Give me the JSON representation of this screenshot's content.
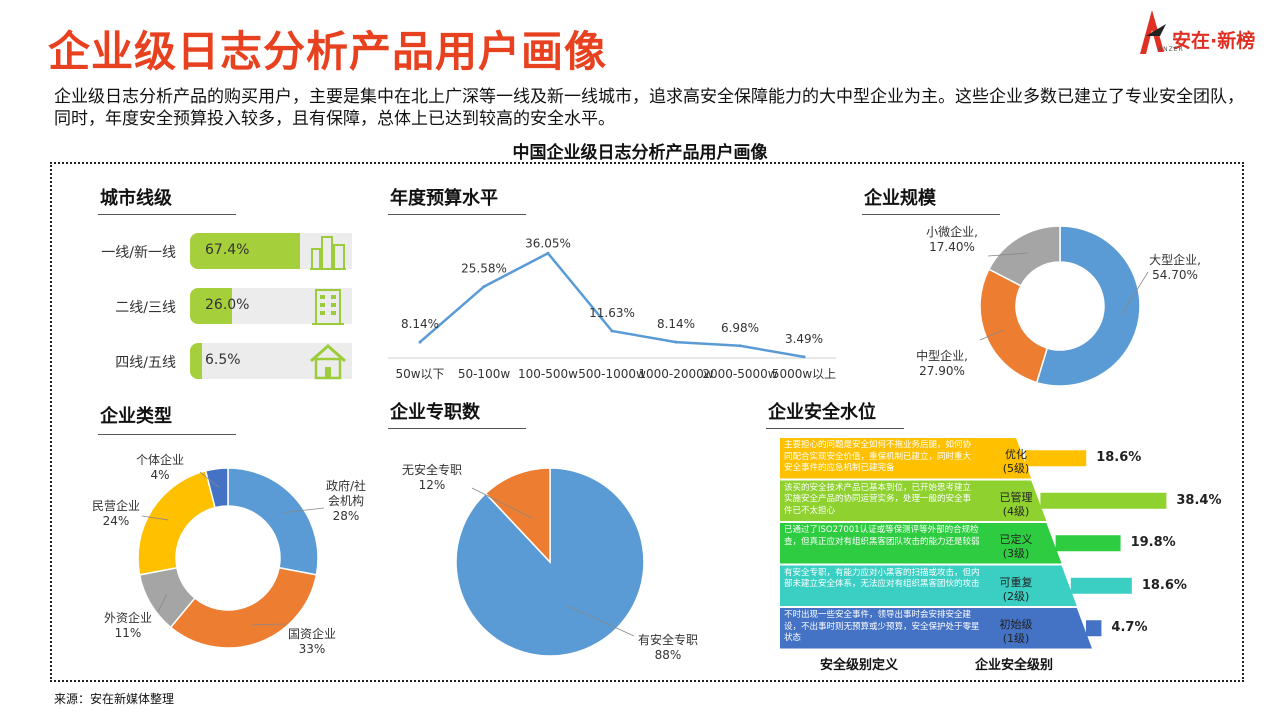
{
  "header": {
    "title": "企业级日志分析产品用户画像",
    "logo_text": "安在·新榜",
    "logo_sub": "ANZER"
  },
  "intro": "企业级日志分析产品的购买用户，主要是集中在北上广深等一线及新一线城市，追求高安全保障能力的大中型企业为主。这些企业多数已建立了专业安全团队，同时，年度安全预算投入较多，且有保障，总体上已达到较高的安全水平。",
  "subtitle": "中国企业级日志分析产品用户画像",
  "source": "来源：安在新媒体整理",
  "colors": {
    "title": "#e8411f",
    "green": "#a6cf3c",
    "blue": "#5b9bd5",
    "orange": "#ed7d31",
    "gray": "#a5a5a5",
    "yellow": "#ffc000",
    "navy": "#4472c4"
  },
  "city": {
    "title": "城市线级",
    "items": [
      {
        "label": "一线/新一线",
        "value": 67.4,
        "display": "67.4%",
        "icon": "skyscraper-icon"
      },
      {
        "label": "二线/三线",
        "value": 26.0,
        "display": "26.0%",
        "icon": "office-building-icon"
      },
      {
        "label": "四线/五线",
        "value": 6.5,
        "display": "6.5%",
        "icon": "house-icon"
      }
    ]
  },
  "chart_data": [
    {
      "type": "line",
      "title": "年度预算水平",
      "categories": [
        "50w以下",
        "50-100w",
        "100-500w",
        "500-1000w",
        "1000-2000w",
        "2000-5000w",
        "5000w以上"
      ],
      "values": [
        8.14,
        25.58,
        36.05,
        11.63,
        8.14,
        6.98,
        3.49
      ],
      "labels": [
        "8.14%",
        "25.58%",
        "36.05%",
        "11.63%",
        "8.14%",
        "6.98%",
        "3.49%"
      ],
      "ylim": [
        0,
        40
      ],
      "grid": false,
      "color": "#5b9bd5"
    },
    {
      "type": "pie",
      "variant": "donut",
      "title": "企业规模",
      "slices": [
        {
          "name": "大型企业",
          "value": 54.7,
          "label": "54.70%",
          "color": "#5b9bd5"
        },
        {
          "name": "中型企业",
          "value": 27.9,
          "label": "27.90%",
          "color": "#ed7d31"
        },
        {
          "name": "小微企业",
          "value": 17.4,
          "label": "17.40%",
          "color": "#a5a5a5"
        }
      ]
    },
    {
      "type": "pie",
      "variant": "donut",
      "title": "企业类型",
      "slices": [
        {
          "name": "政府/社会机构",
          "value": 28,
          "label": "28%",
          "color": "#5b9bd5"
        },
        {
          "name": "国资企业",
          "value": 33,
          "label": "33%",
          "color": "#ed7d31"
        },
        {
          "name": "外资企业",
          "value": 11,
          "label": "11%",
          "color": "#a5a5a5"
        },
        {
          "name": "民营企业",
          "value": 24,
          "label": "24%",
          "color": "#ffc000"
        },
        {
          "name": "个体企业",
          "value": 4,
          "label": "4%",
          "color": "#4472c4"
        }
      ]
    },
    {
      "type": "pie",
      "title": "企业专职数",
      "slices": [
        {
          "name": "有安全专职",
          "value": 88,
          "label": "88%",
          "color": "#5b9bd5"
        },
        {
          "name": "无安全专职",
          "value": 12,
          "label": "12%",
          "color": "#ed7d31"
        }
      ]
    }
  ],
  "security": {
    "title": "企业安全水位",
    "levels": [
      {
        "name": "优化",
        "grade": "(5级)",
        "value": 18.6,
        "display": "18.6%",
        "color": "#ffc000",
        "desc": "主要担心的问题是安全如何不拖业务后腿，如何协同配合实现安全价值，重保机制已建立，同时重大安全事件的应急机制已建完备"
      },
      {
        "name": "已管理",
        "grade": "(4级)",
        "value": 38.4,
        "display": "38.4%",
        "color": "#8fd12f",
        "desc": "该买的安全技术产品已基本到位，已开始思考建立实施安全产品的协同运营实务，处理一般的安全事件已不太担心"
      },
      {
        "name": "已定义",
        "grade": "(3级)",
        "value": 19.8,
        "display": "19.8%",
        "color": "#2ecc40",
        "desc": "已通过了ISO27001认证或等保测评等外部的合规检查，但真正应对有组织黑客团队攻击的能力还是较弱"
      },
      {
        "name": "可重复",
        "grade": "(2级)",
        "value": 18.6,
        "display": "18.6%",
        "color": "#3bcfc4",
        "desc": "有安全专职，有能力应对小黑客的扫描或攻击，但内部未建立安全体系，无法应对有组织黑客团伙的攻击"
      },
      {
        "name": "初始级",
        "grade": "(1级)",
        "value": 4.7,
        "display": "4.7%",
        "color": "#4472c4",
        "desc": "不时出现一些安全事件，领导出事时会安排安全建设，不出事时则无预算或少预算，安全保护处于零星状态"
      }
    ],
    "footer_left": "安全级别定义",
    "footer_right": "企业安全级别"
  }
}
